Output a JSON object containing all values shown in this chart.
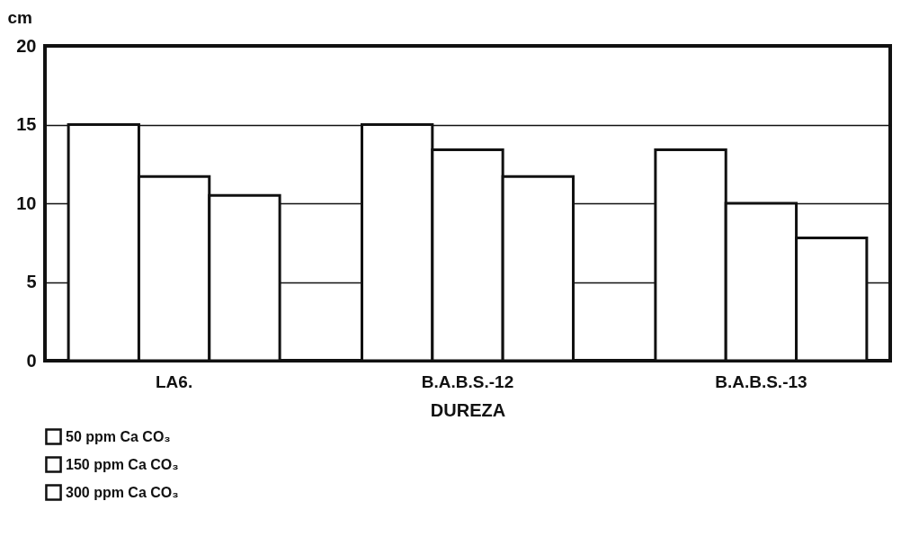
{
  "chart_data": {
    "type": "bar",
    "xlabel": "DUREZA",
    "ylabel": "cm",
    "categories": [
      "LA6.",
      "B.A.B.S.-12",
      "B.A.B.S.-13"
    ],
    "series": [
      {
        "name": "50 ppm Ca CO₃",
        "color": "#ffffff",
        "values": [
          15,
          15,
          13.4
        ]
      },
      {
        "name": "150 ppm Ca CO₃",
        "color": "#ffffff",
        "values": [
          11.7,
          13.4,
          10
        ]
      },
      {
        "name": "300 ppm Ca CO₃",
        "color": "#ffffff",
        "values": [
          10.5,
          11.7,
          7.8
        ]
      }
    ],
    "ylim": [
      0,
      20
    ],
    "yticks": [
      0,
      5,
      10,
      15,
      20
    ],
    "grid": "y",
    "legend": "bottom"
  }
}
